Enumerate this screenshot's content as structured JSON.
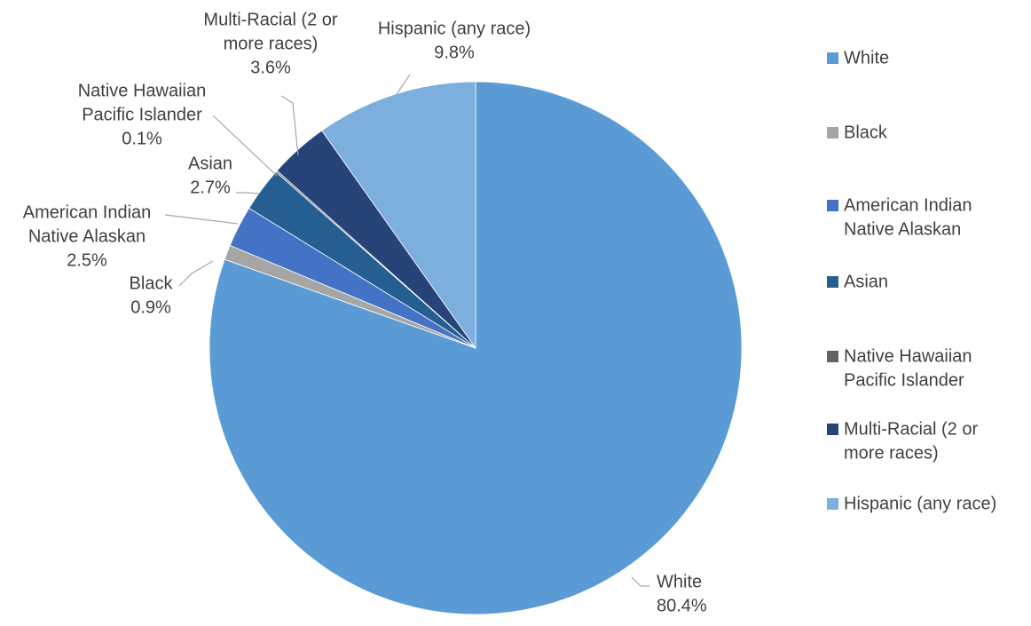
{
  "chart_data": {
    "type": "pie",
    "title": "",
    "start_angle_deg": 0,
    "direction": "clockwise",
    "legend_position": "right",
    "series": [
      {
        "name": "White",
        "value": 80.4,
        "label": "80.4%",
        "color": "#5B9BD5",
        "callout": [
          "White"
        ]
      },
      {
        "name": "Black",
        "value": 0.9,
        "label": "0.9%",
        "color": "#A5A5A5",
        "callout": [
          "Black"
        ]
      },
      {
        "name": "American Indian Native Alaskan",
        "value": 2.5,
        "label": "2.5%",
        "color": "#4472C4",
        "callout": [
          "American Indian",
          "Native Alaskan"
        ],
        "legend": [
          "American Indian",
          "Native Alaskan"
        ]
      },
      {
        "name": "Asian",
        "value": 2.7,
        "label": "2.7%",
        "color": "#255E91",
        "callout": [
          "Asian"
        ]
      },
      {
        "name": "Native Hawaiian Pacific Islander",
        "value": 0.1,
        "label": "0.1%",
        "color": "#636363",
        "callout": [
          "Native Hawaiian",
          "Pacific Islander"
        ],
        "legend": [
          "Native Hawaiian",
          "Pacific Islander"
        ]
      },
      {
        "name": "Multi-Racial (2 or more races)",
        "value": 3.6,
        "label": "3.6%",
        "color": "#264478",
        "callout": [
          "Multi-Racial (2 or",
          "more races)"
        ],
        "legend": [
          "Multi-Racial (2 or",
          "more races)"
        ]
      },
      {
        "name": "Hispanic (any race)",
        "value": 9.8,
        "label": "9.8%",
        "color": "#7CAFDD",
        "callout": [
          "Hispanic (any race)"
        ]
      }
    ]
  }
}
